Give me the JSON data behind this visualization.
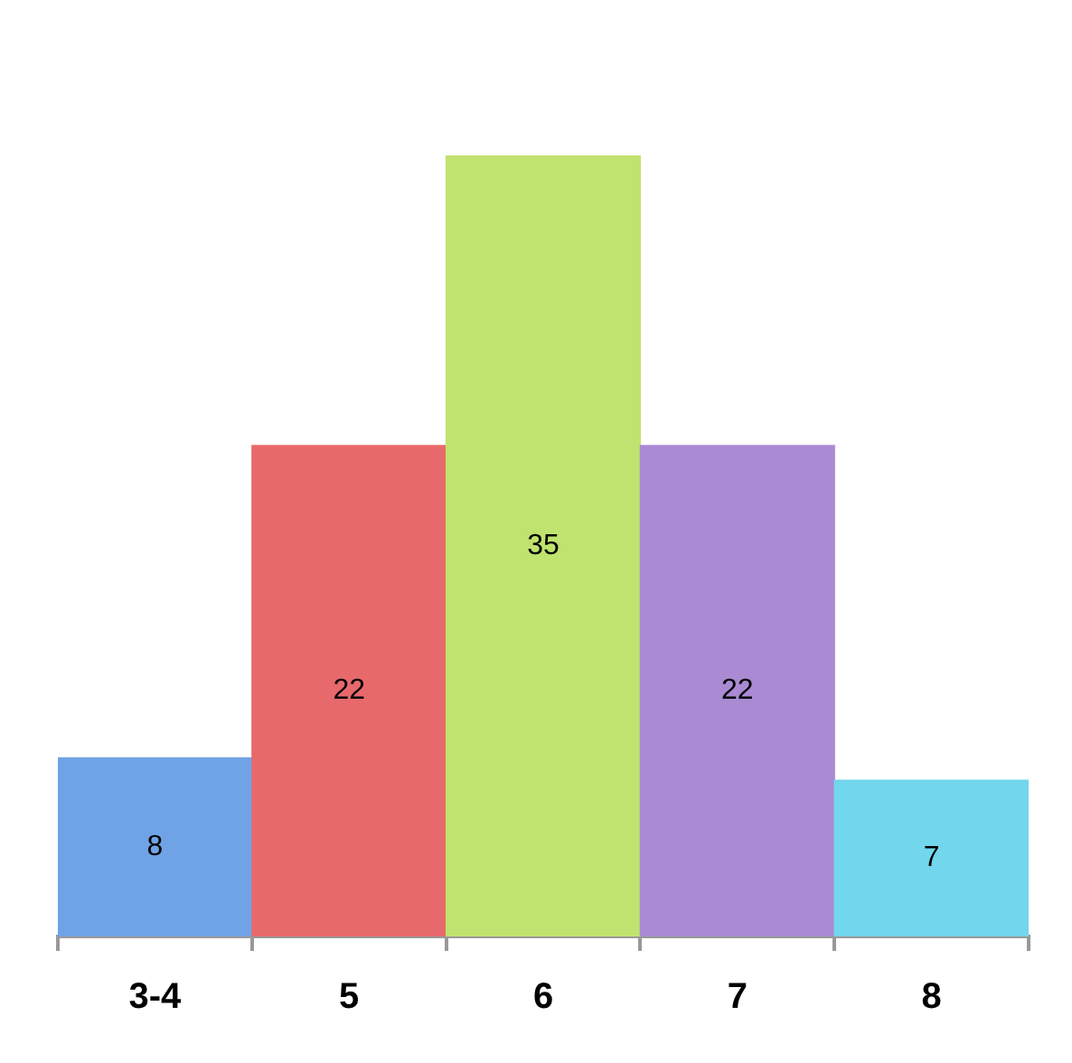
{
  "chart_data": {
    "type": "bar",
    "categories": [
      "3-4",
      "5",
      "6",
      "7",
      "8"
    ],
    "values": [
      8,
      22,
      35,
      22,
      7
    ],
    "colors": [
      "#6fa3e6",
      "#e8696c",
      "#bfe36e",
      "#a98ad3",
      "#72d6ec"
    ],
    "data_labels": true,
    "relative": false,
    "grid": false,
    "legend": false
  }
}
